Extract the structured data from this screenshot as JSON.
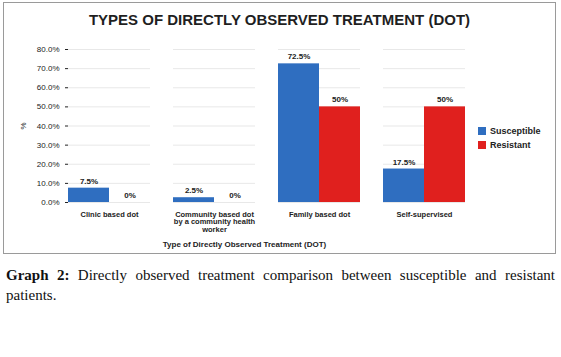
{
  "chart_data": {
    "type": "bar",
    "title": "TYPES OF DIRECTLY OBSERVED TREATMENT (DOT)",
    "x_label": "Type of Directly Observed Treatment (DOT)",
    "y_label": "%",
    "caption": "Graph 2: Directly observed treatment comparison between susceptible and resistant patients.",
    "categories": [
      "Clinic based dot",
      "Community based dot by a community health worker",
      "Family based dot",
      "Self-supervised"
    ],
    "series": [
      {
        "name": "Susceptible",
        "color": "#2f6ec0",
        "values": [
          7.5,
          2.5,
          72.5,
          17.5
        ],
        "value_labels": [
          "7.5%",
          "2.5%",
          "72.5%",
          "17.5%"
        ]
      },
      {
        "name": "Resistant",
        "color": "#e0201e",
        "values": [
          0,
          0,
          50,
          50
        ],
        "value_labels": [
          "0%",
          "0%",
          "50%",
          "50%"
        ]
      }
    ],
    "ylim": [
      0,
      80
    ],
    "yticks": [
      {
        "value": 0,
        "label": "0.0%"
      },
      {
        "value": 10,
        "label": "10.0%"
      },
      {
        "value": 20,
        "label": "20.0%"
      },
      {
        "value": 30,
        "label": "30.0%"
      },
      {
        "value": 40,
        "label": "40.0%"
      },
      {
        "value": 50,
        "label": "50.0%"
      },
      {
        "value": 60,
        "label": "60.0%"
      },
      {
        "value": 70,
        "label": "70.0%"
      },
      {
        "value": 80,
        "label": "80.0%"
      }
    ],
    "grid": true,
    "legend": "right",
    "data_labels": true
  }
}
